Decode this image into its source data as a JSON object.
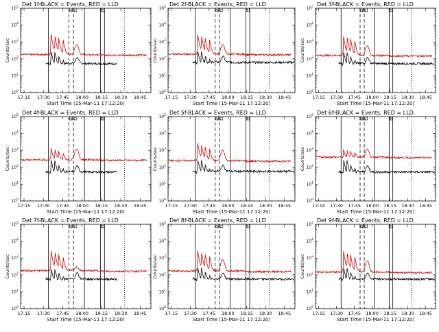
{
  "chart_data": {
    "type": "line",
    "layout": "3x3 grid",
    "xlabel": "Start Time (15-Mar-11 17:12:20)",
    "ylabel": "Counts/sec",
    "x_unit": "minutes after 17:12:20",
    "xlim": [
      0,
      101
    ],
    "x_ticks": [
      2.67,
      17.67,
      32.67,
      47.67,
      62.67,
      77.67,
      92.67
    ],
    "x_tick_labels": [
      "17:15",
      "17:30",
      "17:45",
      "18:00",
      "18:15",
      "18:30",
      "18:45"
    ],
    "yscale": "log",
    "ylim": [
      1,
      100000
    ],
    "y_tick_labels": [
      "10^0",
      "10^1",
      "10^2",
      "10^3",
      "10^4",
      "10^5"
    ],
    "vertical_markers": {
      "solid": [
        21.5,
        49.5,
        62.0,
        65.0
      ],
      "dashed": [
        37.5,
        41.0
      ],
      "dotted": [
        80.5
      ],
      "bracket_labels": [
        {
          "text": "N",
          "x": 38.8
        },
        {
          "text": "C",
          "x": 42.2
        },
        {
          "text": "E",
          "x": 63.3
        }
      ]
    },
    "legend": "title text",
    "series": [
      {
        "name": "Events",
        "color": "#000000"
      },
      {
        "name": "LLD",
        "color": "#d00000"
      }
    ],
    "panels": [
      {
        "title": "Det 1f-BLACK = Events, RED = LLD",
        "events_base": 55,
        "lld_base": 180,
        "events_peaks": [
          320,
          260,
          150,
          90
        ],
        "lld_peaks": [
          3200,
          2600,
          1700,
          1300
        ],
        "flare_lld": 700,
        "events_end": 75
      },
      {
        "title": "Det 2f-BLACK = Events, RED = LLD",
        "events_base": 65,
        "lld_base": 190,
        "events_peaks": [
          330,
          270,
          160,
          100
        ],
        "lld_peaks": [
          3000,
          2600,
          1700,
          1400
        ],
        "flare_lld": 700,
        "events_end": 100
      },
      {
        "title": "Det 3f-BLACK = Events, RED = LLD",
        "events_base": 55,
        "lld_base": 160,
        "events_peaks": [
          300,
          250,
          150,
          90
        ],
        "lld_peaks": [
          2400,
          2200,
          1500,
          1200
        ],
        "flare_lld": 600,
        "events_end": 100
      },
      {
        "title": "Det 4f-BLACK = Events, RED = LLD",
        "events_base": 55,
        "lld_base": 280,
        "events_peaks": [
          320,
          260,
          150,
          90
        ],
        "lld_peaks": [
          1500,
          1300,
          900,
          700
        ],
        "flare_lld": 1200,
        "events_end": 75
      },
      {
        "title": "Det 5f-BLACK = Events, RED = LLD",
        "events_base": 60,
        "lld_base": 250,
        "events_peaks": [
          320,
          260,
          150,
          90
        ],
        "lld_peaks": [
          3000,
          2500,
          1600,
          1300
        ],
        "flare_lld": 1000,
        "events_end": 100
      },
      {
        "title": "Det 6f-BLACK = Events, RED = LLD",
        "events_base": 55,
        "lld_base": 400,
        "events_peaks": [
          330,
          260,
          150,
          90
        ],
        "lld_peaks": [
          1200,
          1100,
          900,
          800
        ],
        "flare_lld": 1200,
        "events_end": 100
      },
      {
        "title": "Det 7f-BLACK = Events, RED = LLD",
        "events_base": 60,
        "lld_base": 180,
        "events_peaks": [
          260,
          220,
          130,
          80
        ],
        "lld_peaks": [
          3000,
          2500,
          1600,
          1100
        ],
        "flare_lld": 300,
        "events_end": 75
      },
      {
        "title": "Det 8f-BLACK = Events, RED = LLD",
        "events_base": 60,
        "lld_base": 170,
        "events_peaks": [
          310,
          260,
          150,
          90
        ],
        "lld_peaks": [
          3000,
          2500,
          1700,
          1300
        ],
        "flare_lld": 800,
        "events_end": 100
      },
      {
        "title": "Det 9f-BLACK = Events, RED = LLD",
        "events_base": 60,
        "lld_base": 150,
        "events_peaks": [
          310,
          250,
          150,
          90
        ],
        "lld_peaks": [
          2800,
          2300,
          1600,
          1200
        ],
        "flare_lld": 700,
        "events_end": 100
      }
    ]
  }
}
